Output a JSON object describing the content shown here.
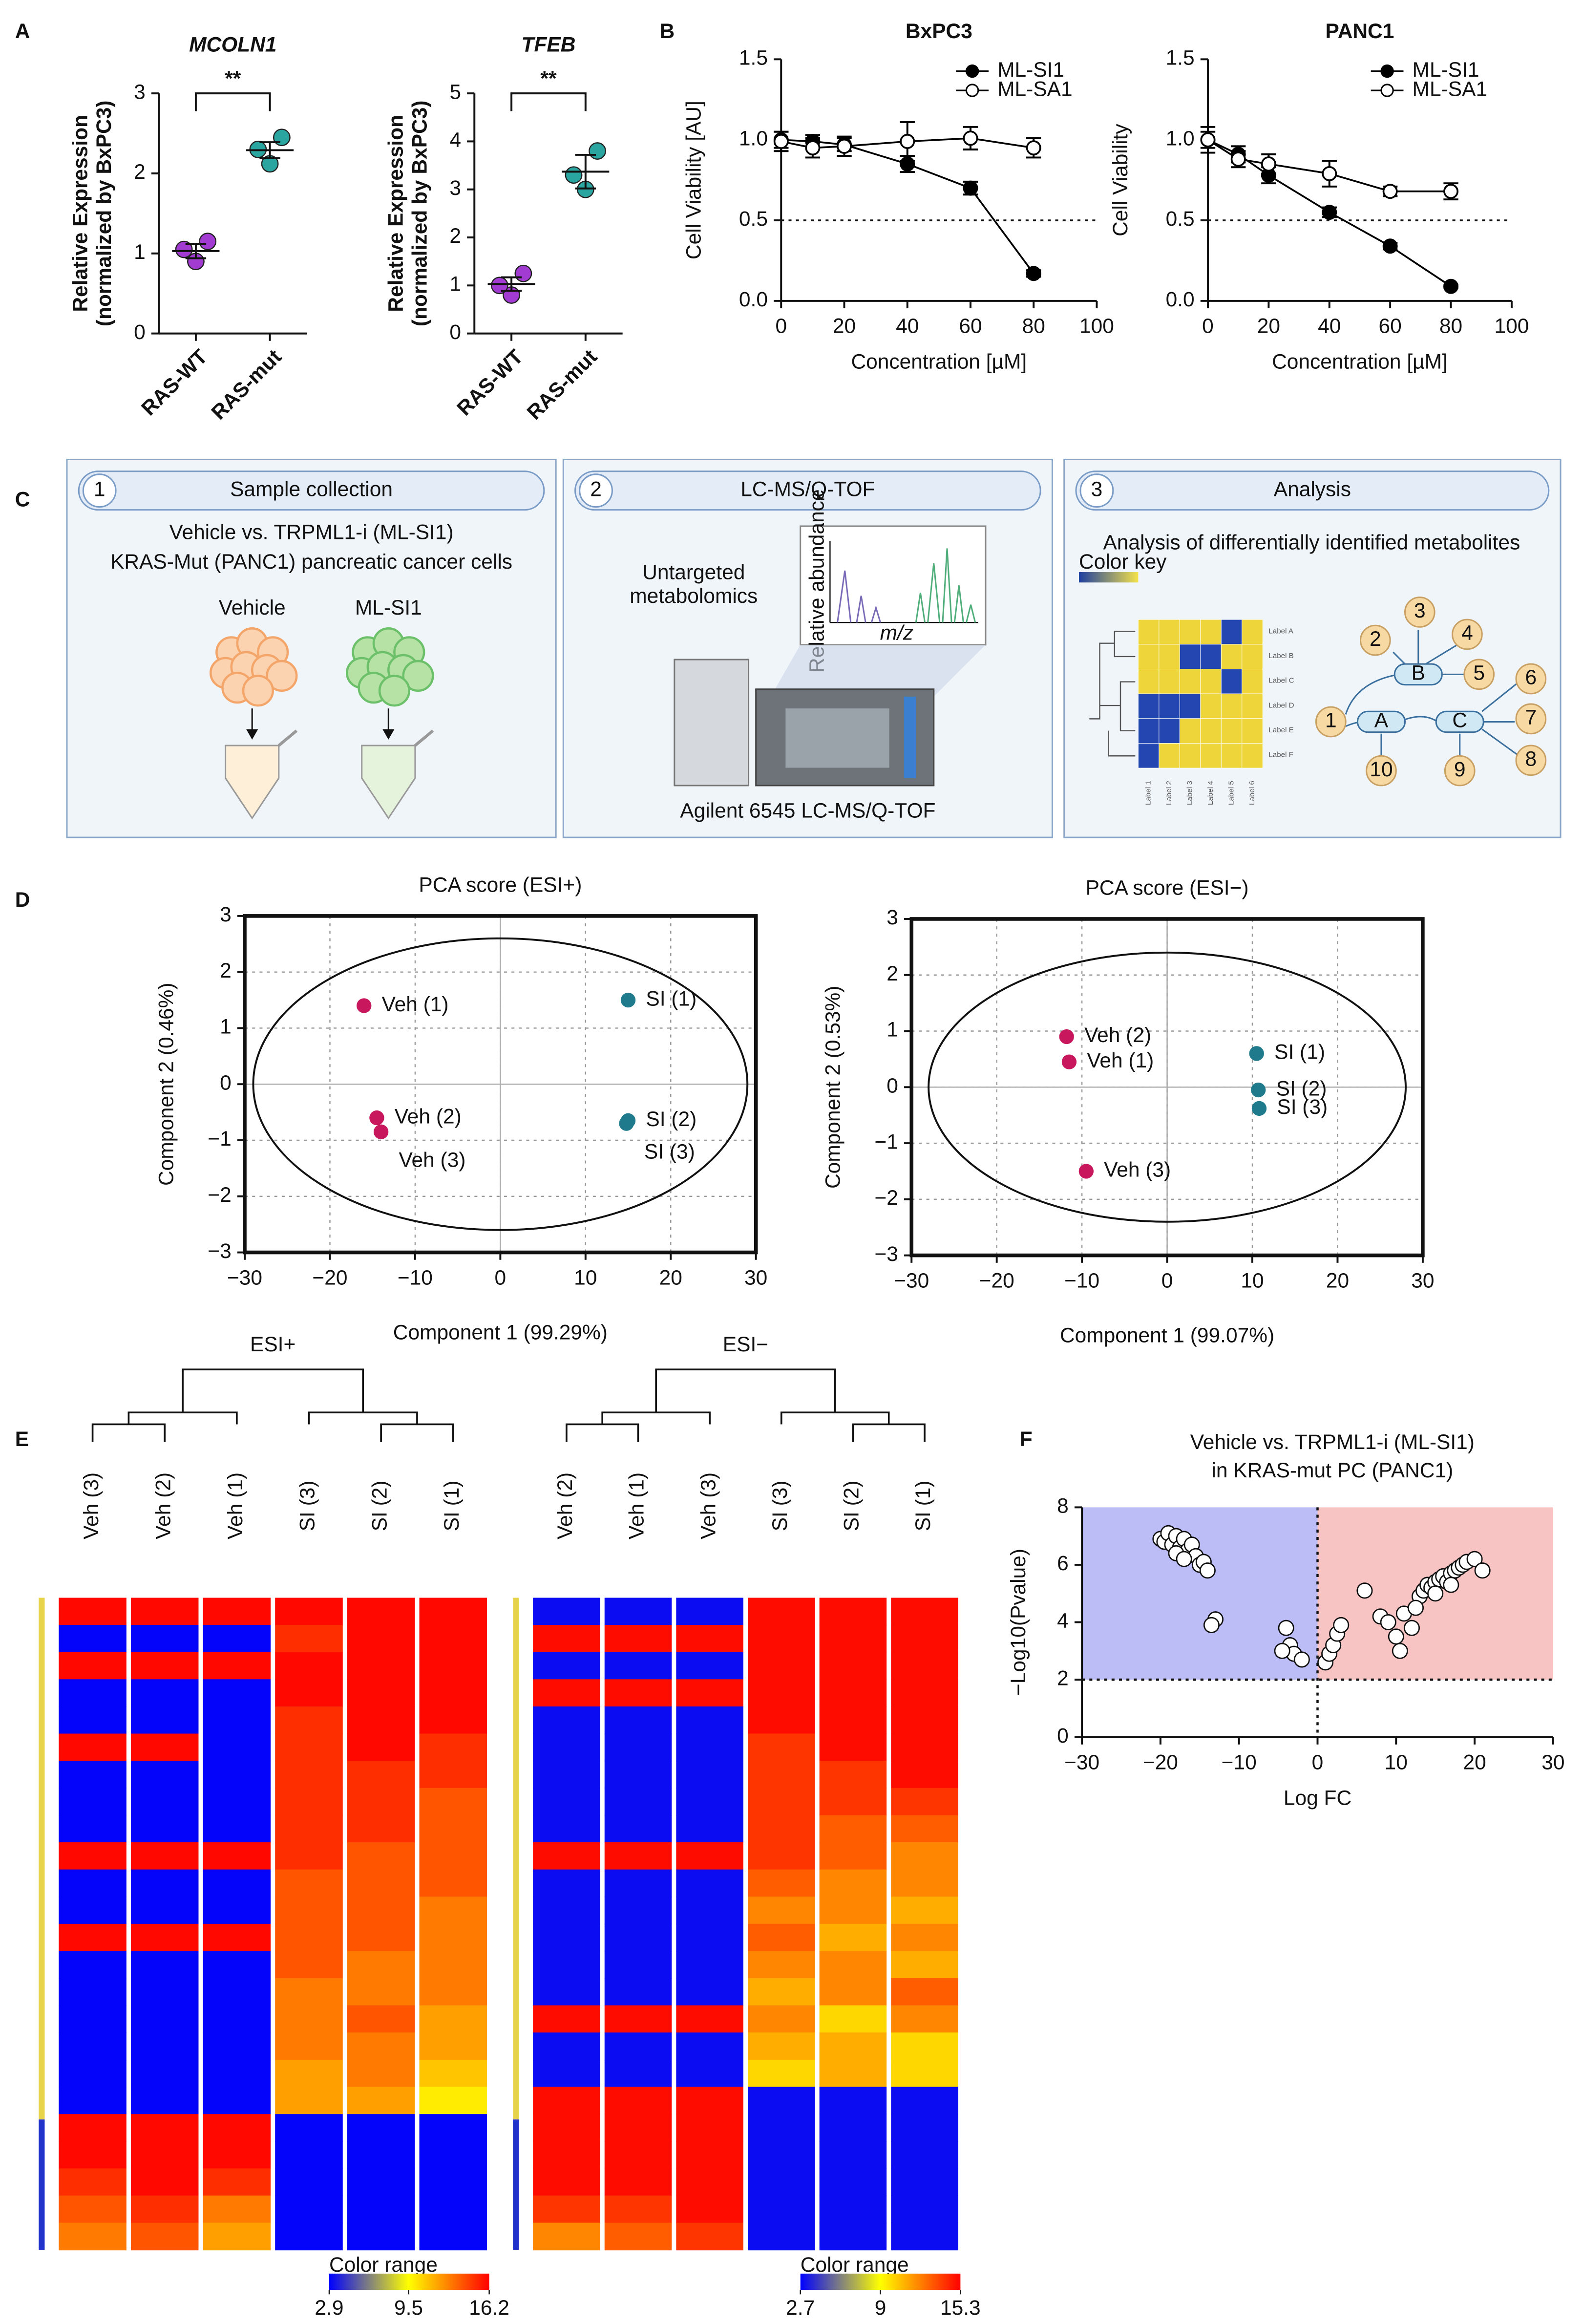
{
  "panel_labels": [
    "A",
    "B",
    "C",
    "D",
    "E",
    "F"
  ],
  "workflow": {
    "steps": [
      {
        "number": "1",
        "title": "Sample collection",
        "texts": [
          "Vehicle vs. TRPML1-i (ML-SI1)",
          "KRAS-Mut (PANC1)  pancreatic cancer cells",
          "Vehicle",
          "ML-SI1"
        ]
      },
      {
        "number": "2",
        "title": "LC-MS/Q-TOF",
        "texts": [
          "Untargeted",
          "metabolomics",
          "Relative abundance",
          "m/z",
          "Agilent 6545 LC-MS/Q-TOF"
        ]
      },
      {
        "number": "3",
        "title": "Analysis",
        "texts": [
          "Analysis of differentially identified metabolites",
          "Color key"
        ],
        "row_labels": [
          "Label A",
          "Label B",
          "Label C",
          "Label D",
          "Label E",
          "Label F"
        ],
        "column_labels": [
          "Label 1",
          "Label 2",
          "Label 3",
          "Label 4",
          "Label 5",
          "Label 6"
        ],
        "nodes": [
          "1",
          "2",
          "3",
          "4",
          "5",
          "6",
          "7",
          "8",
          "9",
          "10",
          "A",
          "B",
          "C"
        ]
      }
    ]
  },
  "chart_data": [
    {
      "type": "dotplot",
      "title": "MCOLN1",
      "ylabel": [
        "Relative Expression",
        "(normalized by BxPC3)"
      ],
      "categories": [
        "RAS-WT",
        "RAS-mut"
      ],
      "points": [
        [
          0.9,
          1.05,
          1.15
        ],
        [
          2.12,
          2.3,
          2.45
        ]
      ],
      "mean": [
        1.03,
        2.29
      ],
      "sem": [
        0.09,
        0.1
      ],
      "colors": [
        "#a13bd1",
        "#2aa5a0"
      ],
      "ylim": [
        0,
        3
      ],
      "yticks": [
        0,
        1,
        2,
        3
      ],
      "annotation": "**"
    },
    {
      "type": "dotplot",
      "title": "TFEB",
      "ylabel": [
        "Relative Expression",
        "(normalized by BxPC3)"
      ],
      "categories": [
        "RAS-WT",
        "RAS-mut"
      ],
      "points": [
        [
          0.8,
          1.0,
          1.25
        ],
        [
          3.0,
          3.3,
          3.8
        ]
      ],
      "mean": [
        1.03,
        3.37
      ],
      "sem": [
        0.14,
        0.35
      ],
      "colors": [
        "#a13bd1",
        "#2aa5a0"
      ],
      "ylim": [
        0,
        5
      ],
      "yticks": [
        0,
        1,
        2,
        3,
        4,
        5
      ],
      "annotation": "**"
    },
    {
      "type": "line",
      "title": "BxPC3",
      "xlabel": "Concentration [µM]",
      "ylabel": "Cell Viability [AU]",
      "x": [
        0,
        10,
        20,
        40,
        60,
        80
      ],
      "series": [
        {
          "name": "ML-SI1",
          "color": "#000000",
          "marker": "filled",
          "values": [
            1.0,
            0.99,
            0.97,
            0.85,
            0.7,
            0.17
          ],
          "errors": [
            0.05,
            0.04,
            0.04,
            0.05,
            0.04,
            0.02
          ]
        },
        {
          "name": "ML-SA1",
          "color": "#000000",
          "marker": "open",
          "values": [
            0.99,
            0.95,
            0.96,
            0.99,
            1.01,
            0.95
          ],
          "errors": [
            0.06,
            0.06,
            0.06,
            0.12,
            0.07,
            0.06
          ]
        }
      ],
      "xlim": [
        0,
        100
      ],
      "xticks": [
        0,
        20,
        40,
        60,
        80,
        100
      ],
      "ylim": [
        0,
        1.5
      ],
      "yticks": [
        {
          "value": 0,
          "label": "0.0"
        },
        {
          "value": 0.5,
          "label": "0.5"
        },
        {
          "value": 1,
          "label": "1.0"
        },
        {
          "value": 1.5,
          "label": "1.5"
        }
      ],
      "reference_line": 0.5,
      "legend": "upper-right"
    },
    {
      "type": "line",
      "title": "PANC1",
      "xlabel": "Concentration [µM]",
      "ylabel": "Cell Viability",
      "x": [
        0,
        10,
        20,
        40,
        60,
        80
      ],
      "series": [
        {
          "name": "ML-SI1",
          "color": "#000000",
          "marker": "filled",
          "values": [
            1.0,
            0.91,
            0.78,
            0.55,
            0.34,
            0.09
          ],
          "errors": [
            0.08,
            0.05,
            0.05,
            0.03,
            0.02,
            0.01
          ]
        },
        {
          "name": "ML-SA1",
          "color": "#000000",
          "marker": "open",
          "values": [
            1.0,
            0.88,
            0.85,
            0.79,
            0.68,
            0.68
          ],
          "errors": [
            0.05,
            0.05,
            0.06,
            0.08,
            0.03,
            0.05
          ]
        }
      ],
      "xlim": [
        0,
        100
      ],
      "xticks": [
        0,
        20,
        40,
        60,
        80,
        100
      ],
      "ylim": [
        0,
        1.5
      ],
      "yticks": [
        {
          "value": 0,
          "label": "0.0"
        },
        {
          "value": 0.5,
          "label": "0.5"
        },
        {
          "value": 1,
          "label": "1.0"
        },
        {
          "value": 1.5,
          "label": "1.5"
        }
      ],
      "reference_line": 0.5,
      "legend": "upper-right"
    },
    {
      "type": "scatter",
      "title": "PCA score (ESI+)",
      "xlabel": "Component 1 (99.29%)",
      "ylabel": "Component 2 (0.46%)",
      "series": [
        {
          "color": "#c8175d",
          "labels": [
            "Veh (1)",
            "Veh (2)",
            "Veh (3)"
          ],
          "x": [
            -16,
            -14.5,
            -14
          ],
          "y": [
            1.4,
            -0.6,
            -0.85
          ]
        },
        {
          "color": "#1f7a8c",
          "labels": [
            "SI (1)",
            "SI (2)",
            "SI (3)"
          ],
          "x": [
            15,
            15,
            14.8
          ],
          "y": [
            1.5,
            -0.65,
            -0.7
          ]
        }
      ],
      "ellipse": {
        "cx": 0,
        "cy": 0,
        "rx": 29,
        "ry": 2.6
      },
      "grid": true,
      "xlim": [
        -30,
        30
      ],
      "xticks": [
        {
          "value": -30,
          "label": "−30"
        },
        {
          "value": -20,
          "label": "−20"
        },
        {
          "value": -10,
          "label": "−10"
        },
        0,
        10,
        20,
        30
      ],
      "ylim": [
        -3,
        3
      ],
      "yticks": [
        {
          "value": -3,
          "label": "−3"
        },
        {
          "value": -2,
          "label": "−2"
        },
        {
          "value": -1,
          "label": "−1"
        },
        0,
        1,
        2,
        3
      ]
    },
    {
      "type": "scatter",
      "title": "PCA score (ESI−)",
      "xlabel": "Component 1 (99.07%)",
      "ylabel": "Component 2 (0.53%)",
      "series": [
        {
          "color": "#c8175d",
          "labels": [
            "Veh (2)",
            "Veh (1)",
            "Veh (3)"
          ],
          "x": [
            -11.8,
            -11.5,
            -9.5
          ],
          "y": [
            0.9,
            0.45,
            -1.5
          ]
        },
        {
          "color": "#1f7a8c",
          "labels": [
            "SI (1)",
            "SI (2)",
            "SI (3)"
          ],
          "x": [
            10.5,
            10.7,
            10.8
          ],
          "y": [
            0.6,
            -0.05,
            -0.38
          ]
        }
      ],
      "ellipse": {
        "cx": 0,
        "cy": 0,
        "rx": 28,
        "ry": 2.4
      },
      "grid": true,
      "xlim": [
        -30,
        30
      ],
      "xticks": [
        {
          "value": -30,
          "label": "−30"
        },
        {
          "value": -20,
          "label": "−20"
        },
        {
          "value": -10,
          "label": "−10"
        },
        0,
        10,
        20,
        30
      ],
      "ylim": [
        -3,
        3
      ],
      "yticks": [
        {
          "value": -3,
          "label": "−3"
        },
        {
          "value": -2,
          "label": "−2"
        },
        {
          "value": -1,
          "label": "−1"
        },
        0,
        1,
        2,
        3
      ]
    },
    {
      "type": "heatmap",
      "title": "ESI+",
      "columns": [
        "Veh (3)",
        "Veh (2)",
        "Veh (1)",
        "SI (3)",
        "SI (2)",
        "SI (1)"
      ],
      "colorbar_title": "Color range",
      "colorbar": [
        2.9,
        9.5,
        16.2
      ],
      "rows": [
        [
          16,
          16,
          16,
          16,
          16,
          16
        ],
        [
          3,
          3,
          3,
          15,
          16,
          16
        ],
        [
          16,
          16,
          16,
          16,
          16,
          16
        ],
        [
          3,
          3,
          3,
          16,
          16,
          16
        ],
        [
          3,
          3,
          3,
          15,
          16,
          16
        ],
        [
          16,
          16,
          3,
          15,
          16,
          15
        ],
        [
          3,
          3,
          3,
          15,
          15,
          15
        ],
        [
          3,
          3,
          3,
          15,
          15,
          14
        ],
        [
          3,
          3,
          3,
          15,
          15,
          14
        ],
        [
          16,
          16,
          16,
          15,
          14,
          14
        ],
        [
          3,
          3,
          3,
          14,
          14,
          14
        ],
        [
          3,
          3,
          3,
          14,
          14,
          13
        ],
        [
          16,
          16,
          16,
          14,
          14,
          13
        ],
        [
          3,
          3,
          3,
          14,
          13,
          13
        ],
        [
          3,
          3,
          3,
          13,
          13,
          13
        ],
        [
          3,
          3,
          3,
          13,
          14,
          12
        ],
        [
          3,
          3,
          3,
          13,
          13,
          12
        ],
        [
          3,
          3,
          3,
          12,
          13,
          11
        ],
        [
          3,
          3,
          3,
          12,
          12,
          10
        ],
        [
          16,
          16,
          16,
          3,
          3,
          3
        ],
        [
          16,
          16,
          16,
          3,
          3,
          3
        ],
        [
          15,
          16,
          15,
          3,
          3,
          3
        ],
        [
          14,
          15,
          13,
          3,
          3,
          3
        ],
        [
          13,
          14,
          12,
          3,
          3,
          3
        ]
      ]
    },
    {
      "type": "heatmap",
      "title": "ESI−",
      "columns": [
        "Veh (2)",
        "Veh (1)",
        "Veh (3)",
        "SI (3)",
        "SI (2)",
        "SI (1)"
      ],
      "colorbar_title": "Color range",
      "colorbar": [
        2.7,
        9,
        15.3
      ],
      "rows": [
        [
          3,
          3,
          3,
          15,
          15,
          15
        ],
        [
          15,
          15,
          15,
          15,
          15,
          15
        ],
        [
          3,
          3,
          3,
          15,
          15,
          15
        ],
        [
          15,
          15,
          15,
          15,
          15,
          15
        ],
        [
          3,
          3,
          3,
          15,
          15,
          15
        ],
        [
          3,
          3,
          3,
          14,
          15,
          15
        ],
        [
          3,
          3,
          3,
          14,
          14,
          15
        ],
        [
          3,
          3,
          3,
          14,
          14,
          14
        ],
        [
          3,
          3,
          3,
          14,
          13,
          13
        ],
        [
          15,
          15,
          15,
          14,
          13,
          12
        ],
        [
          3,
          3,
          3,
          13,
          12,
          12
        ],
        [
          3,
          3,
          3,
          12,
          12,
          11
        ],
        [
          3,
          3,
          3,
          13,
          11,
          12
        ],
        [
          3,
          3,
          3,
          12,
          12,
          11
        ],
        [
          3,
          3,
          3,
          11,
          12,
          13
        ],
        [
          15,
          15,
          15,
          12,
          10,
          12
        ],
        [
          3,
          3,
          3,
          11,
          11,
          10
        ],
        [
          3,
          3,
          3,
          10,
          11,
          10
        ],
        [
          15,
          15,
          15,
          3,
          3,
          3
        ],
        [
          15,
          15,
          15,
          3,
          3,
          3
        ],
        [
          15,
          15,
          15,
          3,
          3,
          3
        ],
        [
          15,
          15,
          15,
          3,
          3,
          3
        ],
        [
          14,
          14,
          15,
          3,
          3,
          3
        ],
        [
          12,
          13,
          14,
          3,
          3,
          3
        ]
      ]
    },
    {
      "type": "volcano",
      "title": [
        "Vehicle vs. TRPML1-i (ML-SI1)",
        "in KRAS-mut PC (PANC1)"
      ],
      "xlabel": "Log FC",
      "ylabel": "−Log10(Pvalue)",
      "x": [
        -20,
        -19.5,
        -19,
        -18.5,
        -18,
        -17.5,
        -17,
        -16.5,
        -16,
        -15.5,
        -15,
        -14.5,
        -14,
        -18,
        -17,
        -13,
        -13.5,
        -4,
        -3.5,
        -3,
        -2,
        -4.5,
        1,
        1.5,
        2,
        2.5,
        3,
        6,
        8,
        9,
        10,
        10.5,
        11,
        12,
        13,
        13.5,
        14,
        14.5,
        15,
        15.5,
        16,
        16.5,
        17,
        17.5,
        18,
        18.5,
        19,
        20,
        21,
        12.5,
        15,
        17
      ],
      "y": [
        6.9,
        6.8,
        7.1,
        6.7,
        7.0,
        6.6,
        6.9,
        6.5,
        6.7,
        6.3,
        6.0,
        6.1,
        5.8,
        6.4,
        6.2,
        4.1,
        3.9,
        3.8,
        3.2,
        2.9,
        2.7,
        3.0,
        2.6,
        2.9,
        3.2,
        3.6,
        3.9,
        5.1,
        4.2,
        4.0,
        3.5,
        3.0,
        4.3,
        3.8,
        4.9,
        5.1,
        5.3,
        5.2,
        5.4,
        5.5,
        5.6,
        5.4,
        5.7,
        5.8,
        5.9,
        6.0,
        6.1,
        6.2,
        5.8,
        4.5,
        5.0,
        5.3
      ],
      "regions": [
        {
          "xlim": [
            -30,
            0
          ],
          "ylim": [
            2,
            8
          ],
          "color": "#bcbcf6"
        },
        {
          "xlim": [
            0,
            30
          ],
          "ylim": [
            2,
            8
          ],
          "color": "#f7c3c3"
        }
      ],
      "threshold_x": 0,
      "threshold_y": 2,
      "xlim": [
        -30,
        30
      ],
      "xticks": [
        {
          "value": -30,
          "label": "−30"
        },
        {
          "value": -20,
          "label": "−20"
        },
        {
          "value": -10,
          "label": "−10"
        },
        0,
        10,
        20,
        30
      ],
      "ylim": [
        0,
        8
      ],
      "yticks": [
        0,
        2,
        4,
        6,
        8
      ]
    }
  ]
}
